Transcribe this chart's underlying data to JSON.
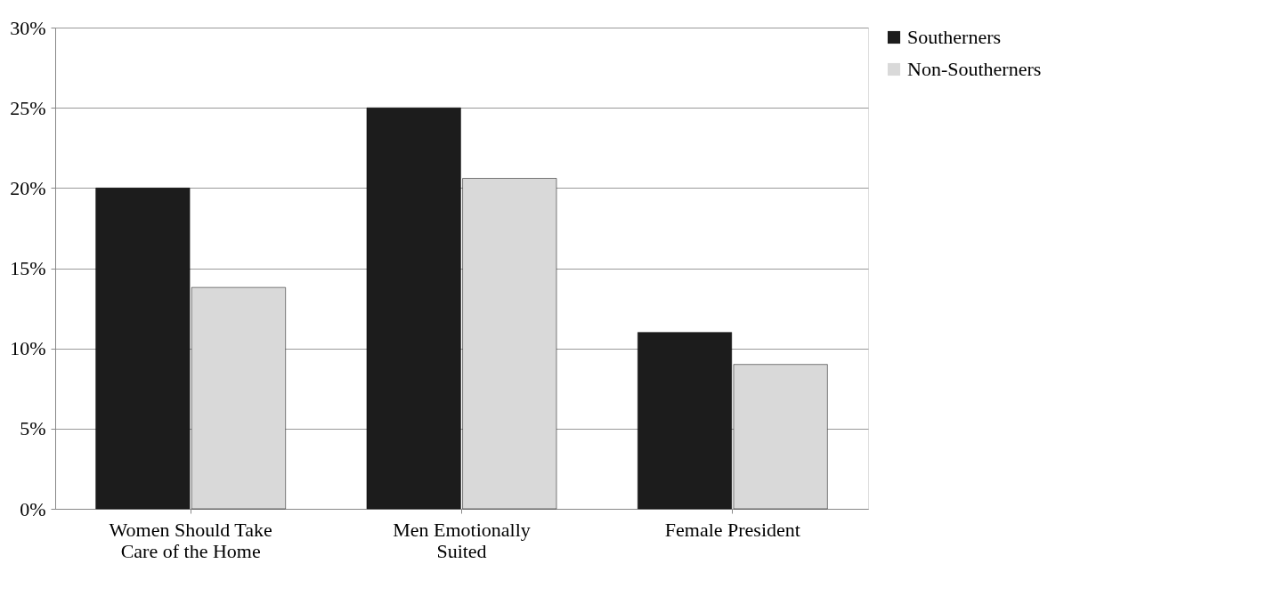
{
  "chart_data": {
    "type": "bar",
    "categories": [
      "Women Should Take Care of the Home",
      "Men Emotionally Suited",
      "Female President"
    ],
    "series": [
      {
        "name": "Southerners",
        "color": "#1c1c1c",
        "values": [
          20.0,
          25.0,
          11.0
        ]
      },
      {
        "name": "Non-Southerners",
        "color": "#d9d9d9",
        "values": [
          13.8,
          20.6,
          9.0
        ]
      }
    ],
    "ylim": [
      0,
      30
    ],
    "yticks": [
      {
        "value": 0,
        "label": "0%"
      },
      {
        "value": 5,
        "label": "5%"
      },
      {
        "value": 10,
        "label": "10%"
      },
      {
        "value": 15,
        "label": "15%"
      },
      {
        "value": 20,
        "label": "20%"
      },
      {
        "value": 25,
        "label": "25%"
      },
      {
        "value": 30,
        "label": "30%"
      }
    ],
    "grid": "y",
    "legend": "right"
  }
}
